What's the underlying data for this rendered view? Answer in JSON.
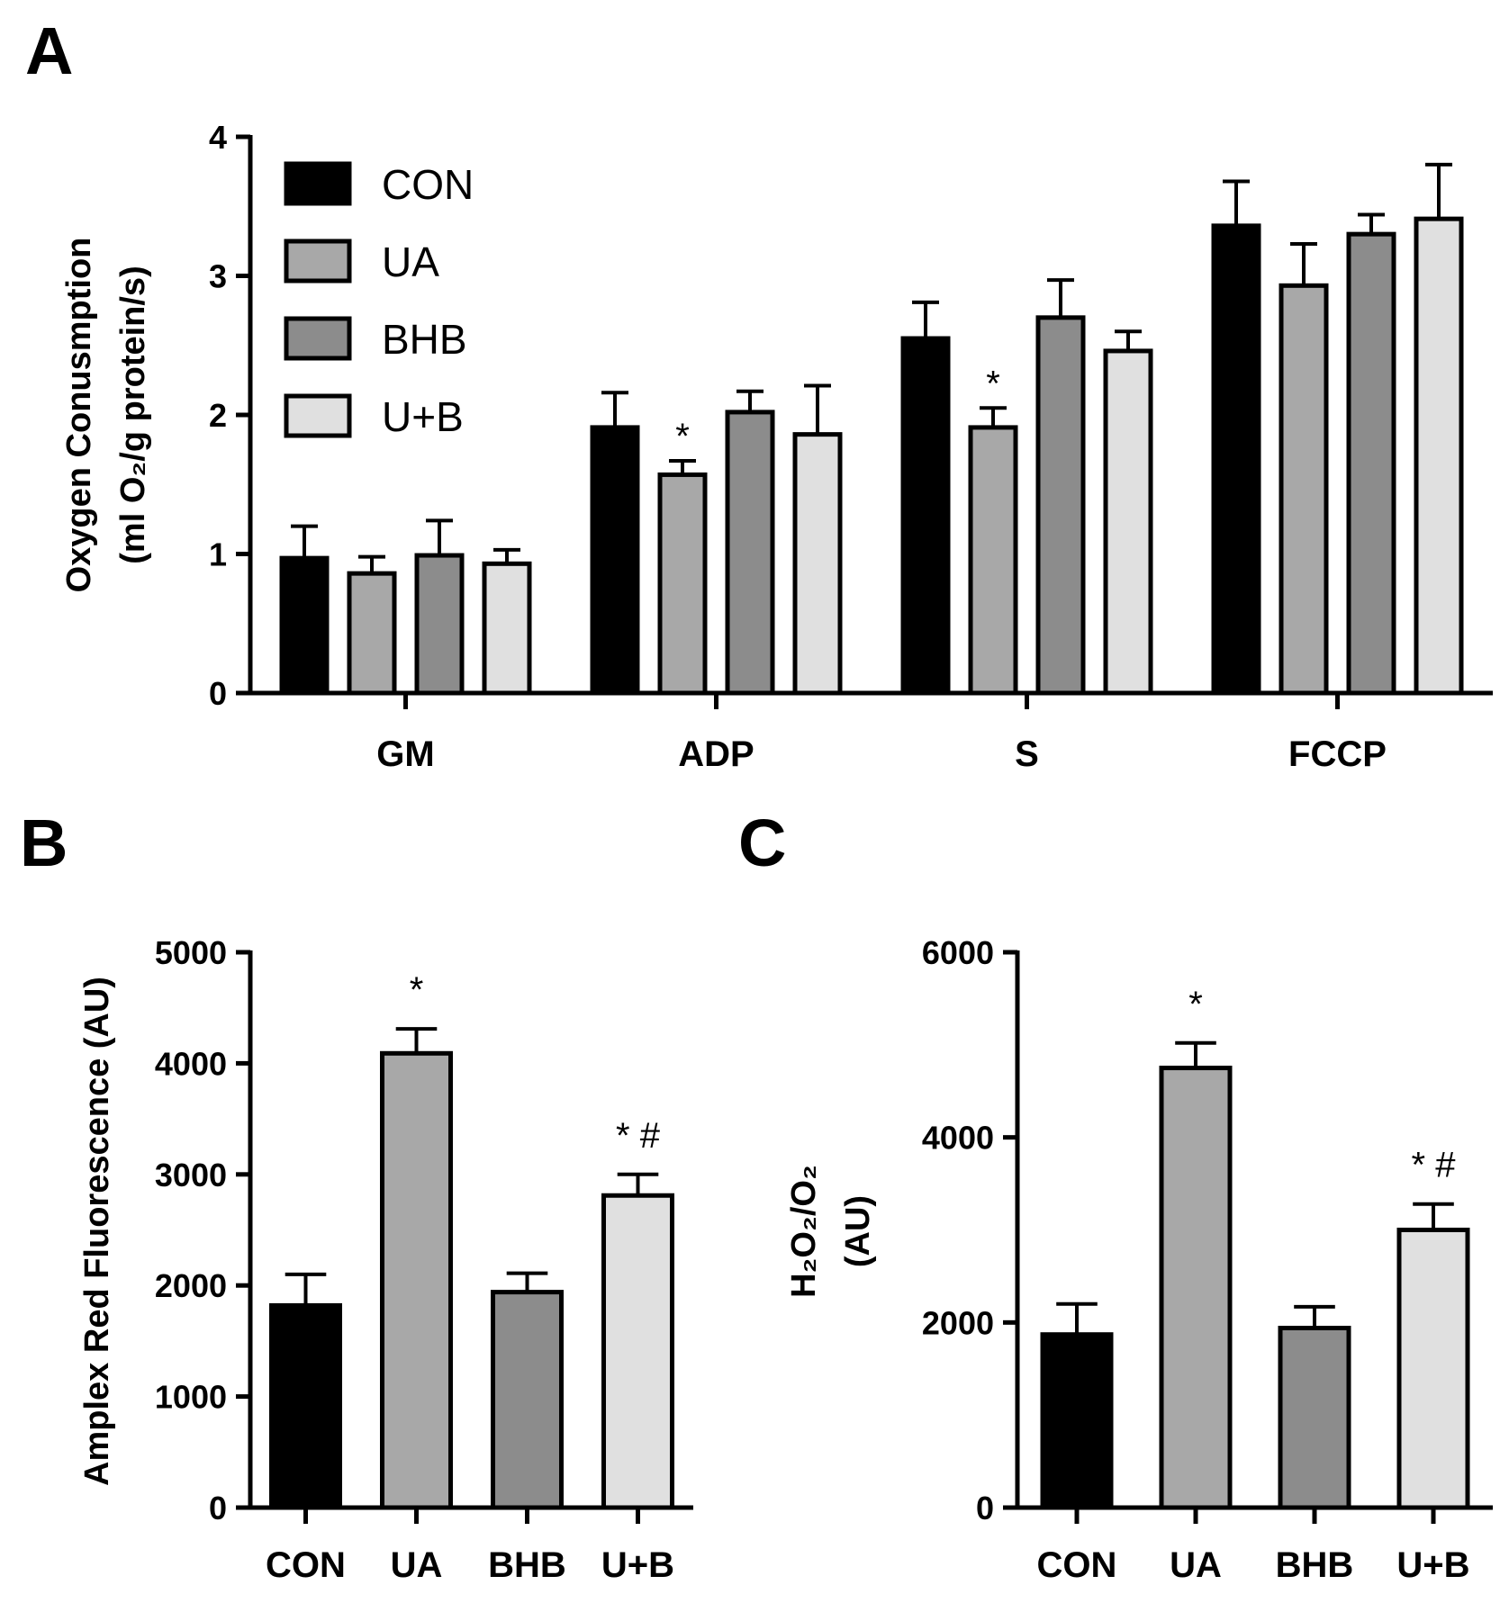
{
  "chart_data": [
    {
      "panel": "A",
      "type": "bar",
      "ylabel_lines": [
        "Oxygen Conusmption",
        "(ml O₂/g protein/s)"
      ],
      "xlabel": "",
      "ylim": [
        0,
        4
      ],
      "yticks": [
        0,
        1,
        2,
        3,
        4
      ],
      "categories": [
        "GM",
        "ADP",
        "S",
        "FCCP"
      ],
      "series": [
        {
          "name": "CON",
          "color": "#000000",
          "values": [
            0.97,
            1.91,
            2.55,
            3.36
          ],
          "errors": [
            0.23,
            0.25,
            0.26,
            0.32
          ]
        },
        {
          "name": "UA",
          "color": "#a8a8a8",
          "values": [
            0.86,
            1.57,
            1.91,
            2.93
          ],
          "errors": [
            0.12,
            0.1,
            0.14,
            0.3
          ]
        },
        {
          "name": "BHB",
          "color": "#8c8c8c",
          "values": [
            0.99,
            2.02,
            2.7,
            3.3
          ],
          "errors": [
            0.25,
            0.15,
            0.27,
            0.14
          ]
        },
        {
          "name": "U+B",
          "color": "#e0e0e0",
          "values": [
            0.93,
            1.86,
            2.46,
            3.41
          ],
          "errors": [
            0.1,
            0.35,
            0.14,
            0.39
          ]
        }
      ],
      "annotations": [
        {
          "category": "ADP",
          "series": "UA",
          "text": "*"
        },
        {
          "category": "S",
          "series": "UA",
          "text": "*"
        }
      ],
      "legend": {
        "position": "top-left",
        "entries": [
          "CON",
          "UA",
          "BHB",
          "U+B"
        ]
      }
    },
    {
      "panel": "B",
      "type": "bar",
      "ylabel_lines": [
        "Amplex Red Fluorescence (AU)"
      ],
      "xlabel": "",
      "ylim": [
        0,
        5000
      ],
      "yticks": [
        0,
        1000,
        2000,
        3000,
        4000,
        5000
      ],
      "categories": [
        "CON",
        "UA",
        "BHB",
        "U+B"
      ],
      "colors": [
        "#000000",
        "#a8a8a8",
        "#8c8c8c",
        "#e0e0e0"
      ],
      "values": [
        1820,
        4090,
        1940,
        2810
      ],
      "errors": [
        280,
        220,
        170,
        190
      ],
      "annotations": [
        "",
        "*",
        "",
        "* #"
      ]
    },
    {
      "panel": "C",
      "type": "bar",
      "ylabel_lines": [
        "H₂O₂/O₂",
        "(AU)"
      ],
      "xlabel": "",
      "ylim": [
        0,
        6000
      ],
      "yticks": [
        0,
        2000,
        4000,
        6000
      ],
      "categories": [
        "CON",
        "UA",
        "BHB",
        "U+B"
      ],
      "colors": [
        "#000000",
        "#a8a8a8",
        "#8c8c8c",
        "#e0e0e0"
      ],
      "values": [
        1870,
        4750,
        1940,
        3000
      ],
      "errors": [
        330,
        270,
        230,
        280
      ],
      "annotations": [
        "",
        "*",
        "",
        "* #"
      ]
    }
  ]
}
